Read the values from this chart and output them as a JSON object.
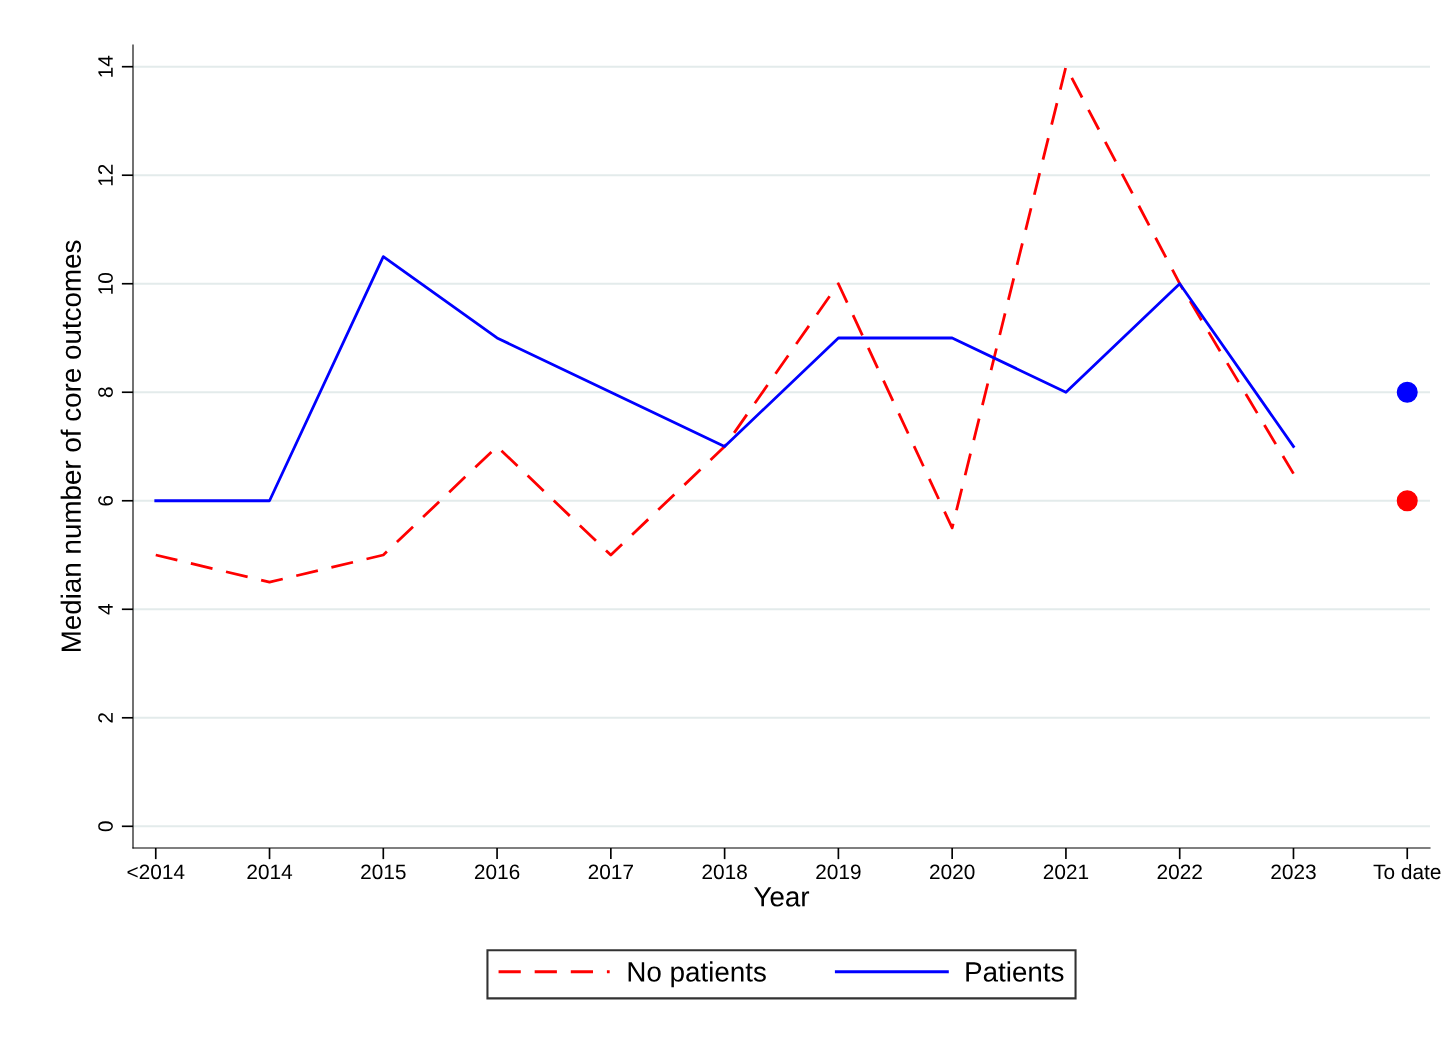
{
  "chart_data": {
    "type": "line",
    "xlabel": "Year",
    "ylabel": "Median number of core outcomes",
    "categories": [
      "<2014",
      "2014",
      "2015",
      "2016",
      "2017",
      "2018",
      "2019",
      "2020",
      "2021",
      "2022",
      "2023",
      "To date"
    ],
    "series": [
      {
        "name": "No patients",
        "color": "#ff0000",
        "line_style": "dashed",
        "values": [
          5,
          4.5,
          5,
          7,
          5,
          7,
          10,
          5.5,
          14,
          10,
          6.5,
          null
        ]
      },
      {
        "name": "Patients",
        "color": "#0000ff",
        "line_style": "solid",
        "values": [
          6,
          6,
          10.5,
          9,
          8,
          7,
          9,
          9,
          8,
          10,
          7,
          null
        ]
      },
      {
        "type": "scatter",
        "color": "#0000ff",
        "marker": "circle",
        "x": [
          "To date"
        ],
        "values": [
          8
        ]
      },
      {
        "type": "scatter",
        "color": "#ff0000",
        "marker": "circle",
        "x": [
          "To date"
        ],
        "values": [
          6
        ]
      }
    ],
    "ylim": [
      -0.4,
      14.4
    ],
    "yticks": [
      0,
      2,
      4,
      6,
      8,
      10,
      12,
      14
    ],
    "grid": "y",
    "legend": "bottom"
  }
}
